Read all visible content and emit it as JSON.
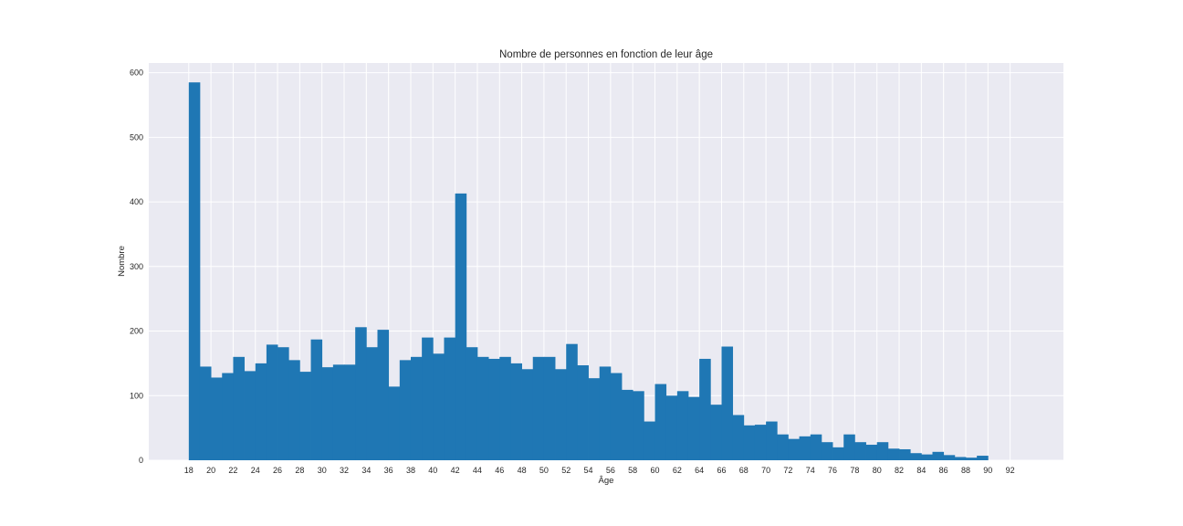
{
  "chart_data": {
    "type": "bar",
    "title": "Nombre de personnes en fonction de leur âge",
    "xlabel": "Âge",
    "ylabel": "Nombre",
    "x_bin_edges_start": 18,
    "bin_width_years": 1.0,
    "values": [
      585,
      145,
      128,
      135,
      160,
      138,
      150,
      179,
      175,
      155,
      137,
      187,
      144,
      148,
      148,
      206,
      175,
      202,
      114,
      155,
      160,
      190,
      165,
      190,
      413,
      175,
      160,
      157,
      160,
      150,
      141,
      160,
      160,
      141,
      180,
      147,
      127,
      145,
      135,
      109,
      107,
      60,
      118,
      100,
      107,
      98,
      157,
      86,
      176,
      70,
      54,
      55,
      60,
      40,
      33,
      37,
      40,
      28,
      20,
      40,
      28,
      24,
      28,
      18,
      17,
      11,
      9,
      13,
      8,
      5,
      4,
      7
    ],
    "xticks": [
      18,
      20,
      22,
      24,
      26,
      28,
      30,
      32,
      34,
      36,
      38,
      40,
      42,
      44,
      46,
      48,
      50,
      52,
      54,
      56,
      58,
      60,
      62,
      64,
      66,
      68,
      70,
      72,
      74,
      76,
      78,
      80,
      82,
      84,
      86,
      88,
      90,
      92
    ],
    "yticks": [
      0,
      100,
      200,
      300,
      400,
      500,
      600
    ],
    "xlim": [
      14.4,
      96.8
    ],
    "ylim": [
      0,
      615
    ],
    "grid": true,
    "colors": {
      "bar": "#1f77b4",
      "background": "#eaeaf2",
      "grid": "#ffffff"
    }
  }
}
